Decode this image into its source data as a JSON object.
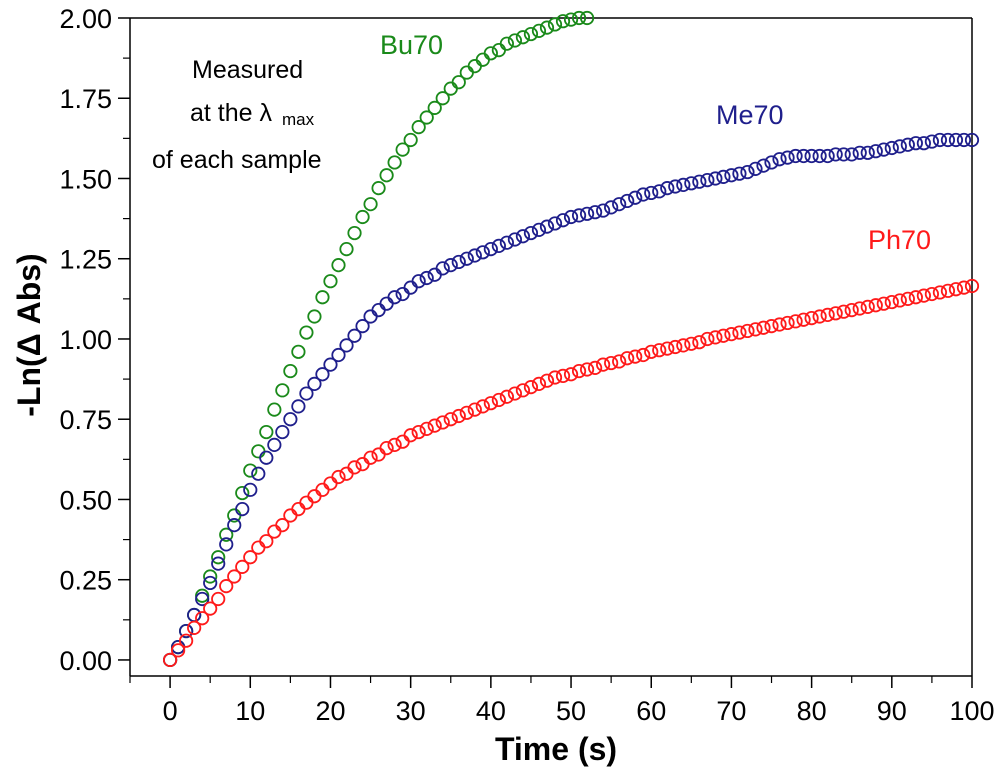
{
  "chart_data": {
    "type": "scatter",
    "xlabel": "Time (s)",
    "ylabel": "-Ln(Δ Abs)",
    "xlim": [
      -5,
      100
    ],
    "ylim": [
      -0.05,
      2.0
    ],
    "x_ticks": [
      0,
      10,
      20,
      30,
      40,
      50,
      60,
      70,
      80,
      90,
      100
    ],
    "y_ticks": [
      0.0,
      0.25,
      0.5,
      0.75,
      1.0,
      1.25,
      1.5,
      1.75,
      2.0
    ],
    "y_tick_labels": [
      "0.00",
      "0.25",
      "0.50",
      "0.75",
      "1.00",
      "1.25",
      "1.50",
      "1.75",
      "2.00"
    ],
    "x_tick_labels": [
      "0",
      "10",
      "20",
      "30",
      "40",
      "50",
      "60",
      "70",
      "80",
      "90",
      "100"
    ],
    "marker": "open-circle",
    "grid": false,
    "annotation": {
      "line1": "Measured",
      "line2_prefix": "at the ",
      "line2_symbol": "λ",
      "line2_subscript": "max",
      "line3": "of each sample"
    },
    "series": [
      {
        "name": "Bu70",
        "color": "#1a8a1a",
        "x": [
          0,
          1,
          2,
          3,
          4,
          5,
          6,
          7,
          8,
          9,
          10,
          11,
          12,
          13,
          14,
          15,
          16,
          17,
          18,
          19,
          20,
          21,
          22,
          23,
          24,
          25,
          26,
          27,
          28,
          29,
          30,
          31,
          32,
          33,
          34,
          35,
          36,
          37,
          38,
          39,
          40,
          41,
          42,
          43,
          44,
          45,
          46,
          47,
          48,
          49,
          50,
          51,
          52
        ],
        "y": [
          0.0,
          0.04,
          0.09,
          0.14,
          0.2,
          0.26,
          0.32,
          0.39,
          0.45,
          0.52,
          0.59,
          0.65,
          0.71,
          0.78,
          0.84,
          0.9,
          0.96,
          1.02,
          1.07,
          1.13,
          1.18,
          1.23,
          1.28,
          1.33,
          1.38,
          1.42,
          1.47,
          1.51,
          1.55,
          1.59,
          1.62,
          1.66,
          1.69,
          1.72,
          1.75,
          1.78,
          1.8,
          1.83,
          1.85,
          1.87,
          1.89,
          1.9,
          1.92,
          1.93,
          1.94,
          1.95,
          1.96,
          1.97,
          1.98,
          1.99,
          1.995,
          2.0,
          2.0
        ]
      },
      {
        "name": "Me70",
        "color": "#1f1f8c",
        "x": [
          0,
          1,
          2,
          3,
          4,
          5,
          6,
          7,
          8,
          9,
          10,
          11,
          12,
          13,
          14,
          15,
          16,
          17,
          18,
          19,
          20,
          21,
          22,
          23,
          24,
          25,
          26,
          27,
          28,
          29,
          30,
          31,
          32,
          33,
          34,
          35,
          36,
          37,
          38,
          39,
          40,
          41,
          42,
          43,
          44,
          45,
          46,
          47,
          48,
          49,
          50,
          51,
          52,
          53,
          54,
          55,
          56,
          57,
          58,
          59,
          60,
          61,
          62,
          63,
          64,
          65,
          66,
          67,
          68,
          69,
          70,
          71,
          72,
          73,
          74,
          75,
          76,
          77,
          78,
          79,
          80,
          81,
          82,
          83,
          84,
          85,
          86,
          87,
          88,
          89,
          90,
          91,
          92,
          93,
          94,
          95,
          96,
          97,
          98,
          99,
          100
        ],
        "y": [
          0.0,
          0.04,
          0.09,
          0.14,
          0.19,
          0.24,
          0.3,
          0.36,
          0.42,
          0.47,
          0.53,
          0.58,
          0.63,
          0.67,
          0.71,
          0.75,
          0.79,
          0.83,
          0.86,
          0.89,
          0.92,
          0.95,
          0.98,
          1.01,
          1.04,
          1.07,
          1.09,
          1.11,
          1.13,
          1.14,
          1.16,
          1.18,
          1.19,
          1.2,
          1.22,
          1.23,
          1.24,
          1.25,
          1.26,
          1.27,
          1.28,
          1.29,
          1.3,
          1.31,
          1.32,
          1.33,
          1.34,
          1.35,
          1.36,
          1.37,
          1.38,
          1.385,
          1.39,
          1.395,
          1.4,
          1.41,
          1.42,
          1.43,
          1.44,
          1.45,
          1.455,
          1.46,
          1.47,
          1.475,
          1.48,
          1.485,
          1.49,
          1.495,
          1.5,
          1.505,
          1.51,
          1.515,
          1.52,
          1.53,
          1.54,
          1.55,
          1.56,
          1.565,
          1.57,
          1.57,
          1.57,
          1.57,
          1.57,
          1.575,
          1.575,
          1.575,
          1.58,
          1.58,
          1.585,
          1.59,
          1.595,
          1.6,
          1.605,
          1.61,
          1.61,
          1.615,
          1.62,
          1.62,
          1.62,
          1.62,
          1.62
        ]
      },
      {
        "name": "Ph70",
        "color": "#ff1a1a",
        "x": [
          0,
          1,
          2,
          3,
          4,
          5,
          6,
          7,
          8,
          9,
          10,
          11,
          12,
          13,
          14,
          15,
          16,
          17,
          18,
          19,
          20,
          21,
          22,
          23,
          24,
          25,
          26,
          27,
          28,
          29,
          30,
          31,
          32,
          33,
          34,
          35,
          36,
          37,
          38,
          39,
          40,
          41,
          42,
          43,
          44,
          45,
          46,
          47,
          48,
          49,
          50,
          51,
          52,
          53,
          54,
          55,
          56,
          57,
          58,
          59,
          60,
          61,
          62,
          63,
          64,
          65,
          66,
          67,
          68,
          69,
          70,
          71,
          72,
          73,
          74,
          75,
          76,
          77,
          78,
          79,
          80,
          81,
          82,
          83,
          84,
          85,
          86,
          87,
          88,
          89,
          90,
          91,
          92,
          93,
          94,
          95,
          96,
          97,
          98,
          99,
          100
        ],
        "y": [
          0.0,
          0.03,
          0.06,
          0.1,
          0.13,
          0.16,
          0.19,
          0.23,
          0.26,
          0.29,
          0.32,
          0.35,
          0.37,
          0.4,
          0.42,
          0.45,
          0.47,
          0.49,
          0.51,
          0.53,
          0.55,
          0.57,
          0.58,
          0.6,
          0.61,
          0.63,
          0.64,
          0.66,
          0.67,
          0.68,
          0.7,
          0.71,
          0.72,
          0.73,
          0.74,
          0.75,
          0.76,
          0.77,
          0.78,
          0.79,
          0.8,
          0.81,
          0.82,
          0.83,
          0.84,
          0.85,
          0.86,
          0.87,
          0.88,
          0.885,
          0.89,
          0.9,
          0.905,
          0.91,
          0.92,
          0.925,
          0.93,
          0.94,
          0.945,
          0.95,
          0.96,
          0.965,
          0.97,
          0.975,
          0.98,
          0.985,
          0.99,
          1.0,
          1.005,
          1.01,
          1.015,
          1.02,
          1.025,
          1.03,
          1.035,
          1.04,
          1.045,
          1.05,
          1.055,
          1.06,
          1.065,
          1.07,
          1.075,
          1.08,
          1.085,
          1.09,
          1.095,
          1.1,
          1.105,
          1.11,
          1.115,
          1.12,
          1.125,
          1.13,
          1.135,
          1.14,
          1.145,
          1.15,
          1.155,
          1.16,
          1.165
        ]
      }
    ]
  }
}
